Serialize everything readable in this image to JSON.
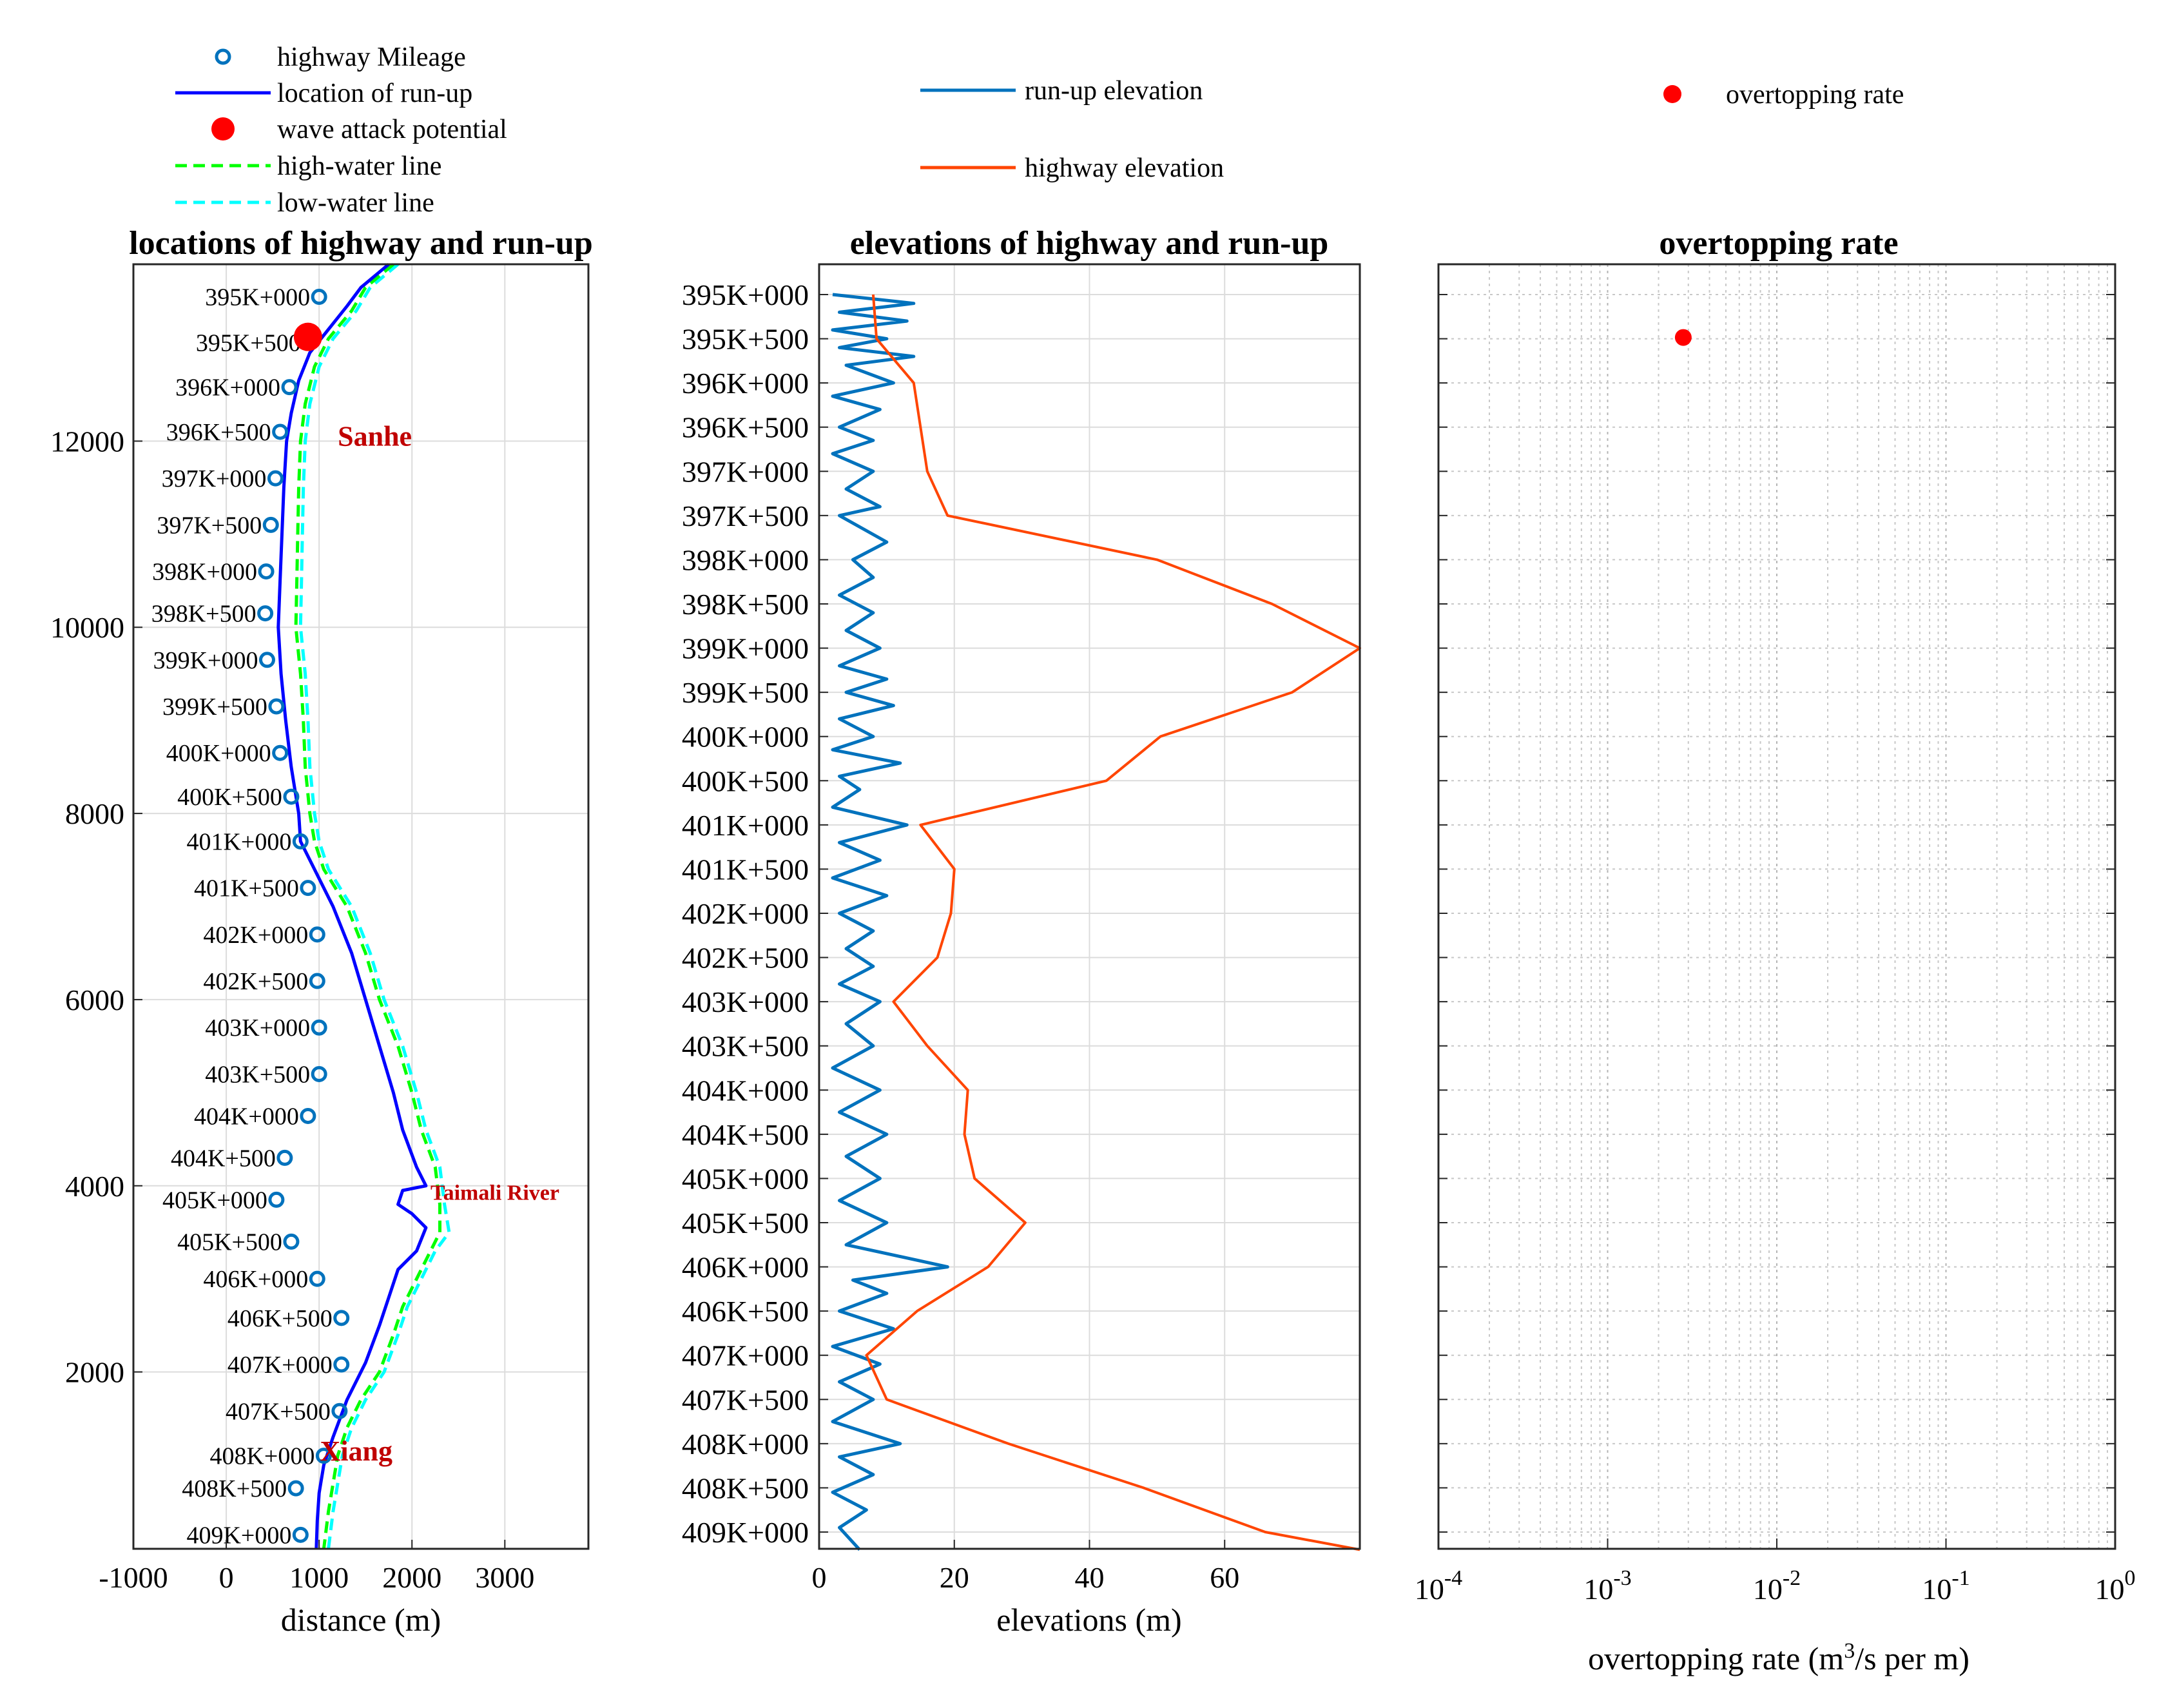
{
  "legends": {
    "left": [
      {
        "label": "highway Mileage",
        "kind": "circle",
        "color": "#0072bd"
      },
      {
        "label": "location of run-up",
        "kind": "line",
        "color": "#0000ff"
      },
      {
        "label": "wave attack potential",
        "kind": "dot",
        "color": "#ff0000"
      },
      {
        "label": "high-water line",
        "kind": "dash",
        "color": "#00ff00"
      },
      {
        "label": "low-water line",
        "kind": "dash",
        "color": "#00ffff"
      }
    ],
    "middle": [
      {
        "label": "run-up elevation",
        "kind": "line",
        "color": "#0072bd"
      },
      {
        "label": "highway elevation",
        "kind": "line",
        "color": "#ff4500"
      }
    ],
    "right": [
      {
        "label": "overtopping rate",
        "kind": "dot",
        "color": "#ff0000"
      }
    ]
  },
  "colors": {
    "runup": "#0000ff",
    "mileage": "#0072bd",
    "attack": "#ff0000",
    "highwater": "#00ff00",
    "lowwater": "#00ffff",
    "runupElev": "#0072bd",
    "hwyElev": "#ff4500",
    "place": "#c00000"
  },
  "places": [
    {
      "name": "Sanhe",
      "distance": 1600,
      "y": 11950
    },
    {
      "name": "Taimali River",
      "distance": 2200,
      "y": 3850
    },
    {
      "name": "Xiang",
      "distance": 1400,
      "y": 1050
    }
  ],
  "chart_data": [
    {
      "type": "line",
      "title": "locations of highway and run-up",
      "xlabel": "distance (m)",
      "xlim": [
        -1000,
        3900
      ],
      "ylim": [
        100,
        13900
      ],
      "xticks": [
        "-1000",
        "0",
        "1000",
        "2000",
        "3000"
      ],
      "yticks": [
        "2000",
        "4000",
        "6000",
        "8000",
        "10000",
        "12000"
      ],
      "mileage": [
        {
          "label": "395K+000",
          "y": 13550,
          "distance": 1000
        },
        {
          "label": "395K+500",
          "y": 13060,
          "distance": 900
        },
        {
          "label": "396K+000",
          "y": 12580,
          "distance": 680
        },
        {
          "label": "396K+500",
          "y": 12100,
          "distance": 580
        },
        {
          "label": "397K+000",
          "y": 11600,
          "distance": 530
        },
        {
          "label": "397K+500",
          "y": 11100,
          "distance": 480
        },
        {
          "label": "398K+000",
          "y": 10600,
          "distance": 430
        },
        {
          "label": "398K+500",
          "y": 10150,
          "distance": 420
        },
        {
          "label": "399K+000",
          "y": 9650,
          "distance": 440
        },
        {
          "label": "399K+500",
          "y": 9150,
          "distance": 540
        },
        {
          "label": "400K+000",
          "y": 8650,
          "distance": 580
        },
        {
          "label": "400K+500",
          "y": 8180,
          "distance": 700
        },
        {
          "label": "401K+000",
          "y": 7700,
          "distance": 800
        },
        {
          "label": "401K+500",
          "y": 7200,
          "distance": 880
        },
        {
          "label": "402K+000",
          "y": 6700,
          "distance": 980
        },
        {
          "label": "402K+500",
          "y": 6200,
          "distance": 980
        },
        {
          "label": "403K+000",
          "y": 5700,
          "distance": 1000
        },
        {
          "label": "403K+500",
          "y": 5200,
          "distance": 1000
        },
        {
          "label": "404K+000",
          "y": 4750,
          "distance": 880
        },
        {
          "label": "404K+500",
          "y": 4300,
          "distance": 630
        },
        {
          "label": "405K+000",
          "y": 3850,
          "distance": 540
        },
        {
          "label": "405K+500",
          "y": 3400,
          "distance": 700
        },
        {
          "label": "406K+000",
          "y": 3000,
          "distance": 980
        },
        {
          "label": "406K+500",
          "y": 2580,
          "distance": 1240
        },
        {
          "label": "407K+000",
          "y": 2080,
          "distance": 1240
        },
        {
          "label": "407K+500",
          "y": 1580,
          "distance": 1220
        },
        {
          "label": "408K+000",
          "y": 1100,
          "distance": 1050
        },
        {
          "label": "408K+500",
          "y": 750,
          "distance": 750
        },
        {
          "label": "409K+000",
          "y": 250,
          "distance": 800
        }
      ],
      "attack_points": [
        {
          "y": 13120,
          "distance": 880
        }
      ],
      "runup": [
        [
          1750,
          13900
        ],
        [
          1450,
          13650
        ],
        [
          1300,
          13450
        ],
        [
          1100,
          13200
        ],
        [
          900,
          12950
        ],
        [
          780,
          12650
        ],
        [
          700,
          12300
        ],
        [
          650,
          12000
        ],
        [
          620,
          11500
        ],
        [
          600,
          11000
        ],
        [
          580,
          10500
        ],
        [
          560,
          10000
        ],
        [
          590,
          9500
        ],
        [
          640,
          9000
        ],
        [
          700,
          8500
        ],
        [
          780,
          8000
        ],
        [
          800,
          7700
        ],
        [
          950,
          7400
        ],
        [
          1150,
          7000
        ],
        [
          1350,
          6500
        ],
        [
          1500,
          6000
        ],
        [
          1650,
          5500
        ],
        [
          1800,
          5000
        ],
        [
          1900,
          4600
        ],
        [
          2050,
          4200
        ],
        [
          2150,
          4000
        ],
        [
          1900,
          3950
        ],
        [
          1850,
          3800
        ],
        [
          2000,
          3700
        ],
        [
          2150,
          3550
        ],
        [
          2050,
          3300
        ],
        [
          1850,
          3100
        ],
        [
          1750,
          2800
        ],
        [
          1650,
          2500
        ],
        [
          1500,
          2100
        ],
        [
          1300,
          1700
        ],
        [
          1150,
          1300
        ],
        [
          1050,
          1000
        ],
        [
          1000,
          700
        ],
        [
          980,
          400
        ],
        [
          970,
          100
        ]
      ],
      "highwater": [
        [
          1800,
          13900
        ],
        [
          1500,
          13650
        ],
        [
          1350,
          13400
        ],
        [
          1100,
          13100
        ],
        [
          950,
          12800
        ],
        [
          850,
          12400
        ],
        [
          800,
          12000
        ],
        [
          780,
          11500
        ],
        [
          770,
          11000
        ],
        [
          760,
          10500
        ],
        [
          750,
          10000
        ],
        [
          800,
          9500
        ],
        [
          830,
          9000
        ],
        [
          850,
          8500
        ],
        [
          900,
          8000
        ],
        [
          950,
          7700
        ],
        [
          1050,
          7400
        ],
        [
          1300,
          7000
        ],
        [
          1500,
          6500
        ],
        [
          1650,
          6000
        ],
        [
          1850,
          5500
        ],
        [
          2000,
          5000
        ],
        [
          2100,
          4600
        ],
        [
          2250,
          4200
        ],
        [
          2300,
          3800
        ],
        [
          2300,
          3500
        ],
        [
          2200,
          3300
        ],
        [
          2050,
          3000
        ],
        [
          1900,
          2700
        ],
        [
          1800,
          2400
        ],
        [
          1650,
          2000
        ],
        [
          1450,
          1700
        ],
        [
          1300,
          1400
        ],
        [
          1200,
          1100
        ],
        [
          1150,
          800
        ],
        [
          1100,
          500
        ],
        [
          1050,
          100
        ]
      ],
      "lowwater": [
        [
          1850,
          13900
        ],
        [
          1550,
          13650
        ],
        [
          1400,
          13400
        ],
        [
          1150,
          13100
        ],
        [
          1000,
          12800
        ],
        [
          900,
          12400
        ],
        [
          850,
          12000
        ],
        [
          830,
          11500
        ],
        [
          820,
          11000
        ],
        [
          810,
          10500
        ],
        [
          800,
          10000
        ],
        [
          850,
          9500
        ],
        [
          880,
          9000
        ],
        [
          900,
          8500
        ],
        [
          950,
          8000
        ],
        [
          1000,
          7700
        ],
        [
          1100,
          7400
        ],
        [
          1350,
          7000
        ],
        [
          1550,
          6500
        ],
        [
          1700,
          6000
        ],
        [
          1900,
          5500
        ],
        [
          2050,
          5000
        ],
        [
          2150,
          4600
        ],
        [
          2300,
          4200
        ],
        [
          2350,
          3800
        ],
        [
          2400,
          3500
        ],
        [
          2250,
          3300
        ],
        [
          2100,
          3000
        ],
        [
          1950,
          2700
        ],
        [
          1850,
          2400
        ],
        [
          1700,
          2000
        ],
        [
          1500,
          1700
        ],
        [
          1350,
          1400
        ],
        [
          1250,
          1100
        ],
        [
          1200,
          800
        ],
        [
          1150,
          500
        ],
        [
          1100,
          100
        ]
      ]
    },
    {
      "type": "line",
      "title": "elevations of highway and run-up",
      "xlabel": "elevations (m)",
      "xlim": [
        0,
        80
      ],
      "xticks": [
        "0",
        "20",
        "40",
        "60"
      ],
      "yticks": [
        "395K+000",
        "395K+500",
        "396K+000",
        "396K+500",
        "397K+000",
        "397K+500",
        "398K+000",
        "398K+500",
        "399K+000",
        "399K+500",
        "400K+000",
        "400K+500",
        "401K+000",
        "401K+500",
        "402K+000",
        "402K+500",
        "403K+000",
        "403K+500",
        "404K+000",
        "404K+500",
        "405K+000",
        "405K+500",
        "406K+000",
        "406K+500",
        "407K+000",
        "407K+500",
        "408K+000",
        "408K+500",
        "409K+000"
      ],
      "highway_elevation": [
        [
          8,
          0
        ],
        [
          8.5,
          1
        ],
        [
          14,
          2
        ],
        [
          16,
          4
        ],
        [
          19,
          5
        ],
        [
          50,
          6
        ],
        [
          67,
          7
        ],
        [
          80,
          8
        ],
        [
          70,
          9
        ],
        [
          50.5,
          10
        ],
        [
          42.5,
          11
        ],
        [
          15,
          12
        ],
        [
          20,
          13
        ],
        [
          19.5,
          14
        ],
        [
          17.5,
          15
        ],
        [
          11,
          16
        ],
        [
          16,
          17
        ],
        [
          22,
          18
        ],
        [
          21.5,
          19
        ],
        [
          23,
          20
        ],
        [
          30.5,
          21
        ],
        [
          25,
          22
        ],
        [
          14.5,
          23
        ],
        [
          7,
          24
        ],
        [
          10,
          25
        ],
        [
          28,
          26
        ],
        [
          48,
          27
        ],
        [
          66,
          28
        ],
        [
          80,
          28.4
        ]
      ],
      "runup_elevation": [
        [
          2,
          0
        ],
        [
          14,
          0.2
        ],
        [
          3,
          0.4
        ],
        [
          13,
          0.6
        ],
        [
          2,
          0.8
        ],
        [
          10,
          1
        ],
        [
          3,
          1.2
        ],
        [
          14,
          1.4
        ],
        [
          4,
          1.6
        ],
        [
          11,
          2
        ],
        [
          2,
          2.3
        ],
        [
          9,
          2.6
        ],
        [
          3,
          3
        ],
        [
          8,
          3.3
        ],
        [
          2,
          3.6
        ],
        [
          8,
          4
        ],
        [
          4,
          4.4
        ],
        [
          9,
          4.8
        ],
        [
          3,
          5
        ],
        [
          10,
          5.6
        ],
        [
          5,
          6
        ],
        [
          8,
          6.4
        ],
        [
          3,
          6.8
        ],
        [
          8,
          7.2
        ],
        [
          4,
          7.6
        ],
        [
          9,
          8
        ],
        [
          3,
          8.4
        ],
        [
          10,
          8.7
        ],
        [
          4,
          9
        ],
        [
          11,
          9.3
        ],
        [
          3,
          9.6
        ],
        [
          8,
          10
        ],
        [
          2,
          10.3
        ],
        [
          12,
          10.6
        ],
        [
          3,
          10.9
        ],
        [
          6,
          11.2
        ],
        [
          2,
          11.6
        ],
        [
          13,
          12
        ],
        [
          3,
          12.4
        ],
        [
          9,
          12.8
        ],
        [
          2,
          13.2
        ],
        [
          10,
          13.6
        ],
        [
          3,
          14
        ],
        [
          8,
          14.4
        ],
        [
          4,
          14.8
        ],
        [
          8,
          15.2
        ],
        [
          3,
          15.6
        ],
        [
          9,
          16
        ],
        [
          4,
          16.5
        ],
        [
          8,
          17
        ],
        [
          2,
          17.5
        ],
        [
          9,
          18
        ],
        [
          3,
          18.5
        ],
        [
          10,
          19
        ],
        [
          4,
          19.5
        ],
        [
          9,
          20
        ],
        [
          3,
          20.5
        ],
        [
          10,
          21
        ],
        [
          4,
          21.5
        ],
        [
          19,
          22
        ],
        [
          5,
          22.3
        ],
        [
          10,
          22.6
        ],
        [
          3,
          23
        ],
        [
          11,
          23.4
        ],
        [
          2,
          23.8
        ],
        [
          9,
          24.2
        ],
        [
          3,
          24.6
        ],
        [
          8,
          25
        ],
        [
          2,
          25.5
        ],
        [
          12,
          26
        ],
        [
          3,
          26.3
        ],
        [
          8,
          26.7
        ],
        [
          2,
          27.1
        ],
        [
          7,
          27.5
        ],
        [
          3,
          27.9
        ],
        [
          6,
          28.4
        ]
      ]
    },
    {
      "type": "scatter",
      "title": "overtopping rate",
      "xlabel": "overtopping rate (m3/s per m)",
      "xscale": "log",
      "xlim": [
        0.0001,
        1
      ],
      "xticks": [
        "10-4",
        "10-3",
        "10-2",
        "10-1",
        "100"
      ],
      "points": [
        {
          "x": 0.0028,
          "mileage": 1
        }
      ]
    }
  ]
}
